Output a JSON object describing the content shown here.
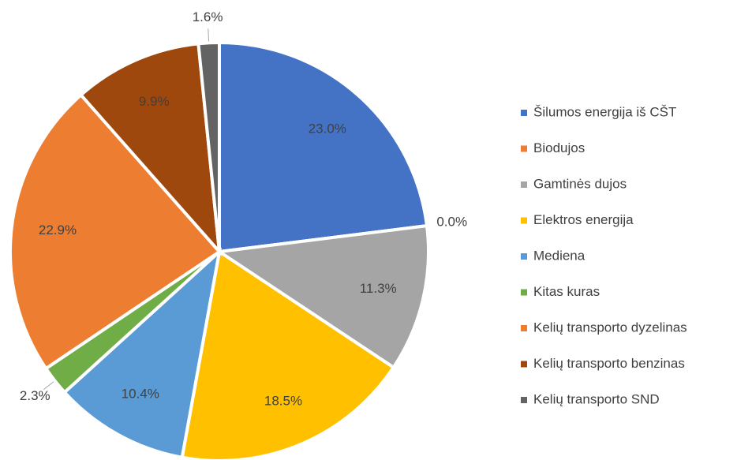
{
  "chart_data": {
    "type": "pie",
    "categories": [
      "Šilumos energija iš CŠT",
      "Biodujos",
      "Gamtinės dujos",
      "Elektros energija",
      "Mediena",
      "Kitas kuras",
      "Kelių transporto dyzelinas",
      "Kelių transporto benzinas",
      "Kelių transporto SND"
    ],
    "values": [
      23.0,
      0.0,
      11.3,
      18.5,
      10.4,
      2.3,
      22.9,
      9.9,
      1.6
    ],
    "value_labels": [
      "23.0%",
      "0.0%",
      "11.3%",
      "18.5%",
      "10.4%",
      "2.3%",
      "22.9%",
      "9.9%",
      "1.6%"
    ],
    "colors": [
      "#4472c4",
      "#ed7d31",
      "#a5a5a5",
      "#ffc000",
      "#5b9bd5",
      "#70ad47",
      "#ed7d31",
      "#9e480e",
      "#636363"
    ],
    "legend": "right"
  }
}
